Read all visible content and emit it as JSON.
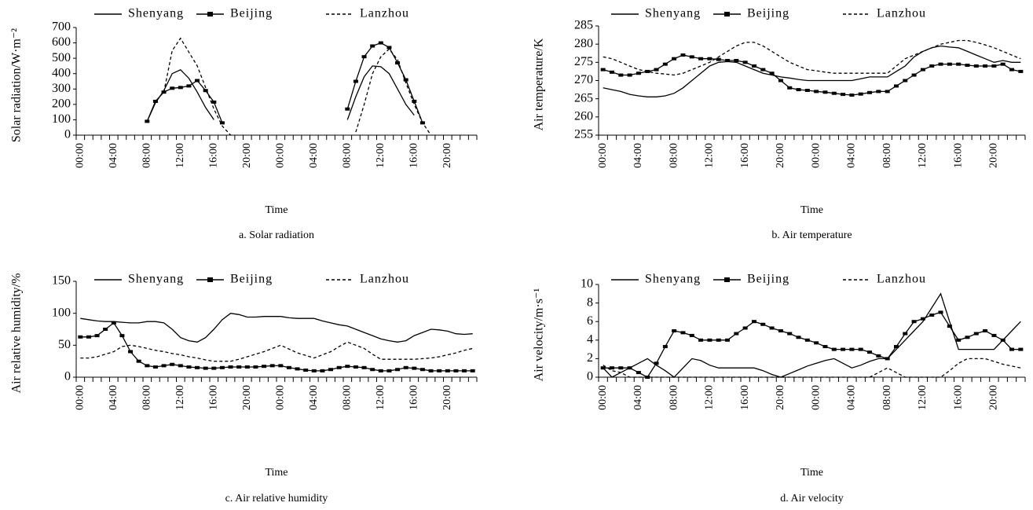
{
  "chart_data": [
    {
      "type": "line",
      "title": "a. Solar radiation",
      "xlabel": "Time",
      "ylabel": "Solar radiation/W·m⁻²",
      "legend": "top",
      "categories": [
        "00:00",
        null,
        null,
        null,
        "04:00",
        null,
        null,
        null,
        "08:00",
        null,
        null,
        null,
        "12:00",
        null,
        null,
        null,
        "16:00",
        null,
        null,
        null,
        "20:00",
        null,
        null,
        null,
        "00:00",
        null,
        null,
        null,
        "04:00",
        null,
        null,
        null,
        "08:00",
        null,
        null,
        null,
        "12:00",
        null,
        null,
        null,
        "16:00",
        null,
        null,
        null,
        "20:00",
        null,
        null,
        null
      ],
      "ylim": [
        0,
        700
      ],
      "yticks": [
        0,
        100,
        200,
        300,
        400,
        500,
        600,
        700
      ],
      "series": [
        {
          "name": "Shenyang",
          "color": "#000000",
          "style": "solid",
          "marker": "none",
          "values": [
            null,
            null,
            null,
            null,
            null,
            null,
            null,
            null,
            90,
            210,
            290,
            400,
            425,
            370,
            280,
            180,
            100,
            null,
            null,
            null,
            null,
            null,
            null,
            null,
            null,
            null,
            null,
            null,
            null,
            null,
            null,
            null,
            100,
            250,
            380,
            450,
            445,
            400,
            300,
            200,
            130,
            null,
            null,
            null,
            null,
            null,
            null,
            null
          ]
        },
        {
          "name": "Beijing",
          "color": "#000000",
          "style": "solid",
          "marker": "square",
          "values": [
            null,
            null,
            null,
            null,
            null,
            null,
            null,
            null,
            90,
            220,
            280,
            305,
            310,
            320,
            355,
            290,
            215,
            80,
            null,
            null,
            null,
            null,
            null,
            null,
            null,
            null,
            null,
            null,
            null,
            null,
            null,
            null,
            170,
            350,
            510,
            580,
            600,
            570,
            470,
            360,
            220,
            80,
            null,
            null,
            null,
            null,
            null,
            null
          ]
        },
        {
          "name": "Lanzhou",
          "color": "#000000",
          "style": "dashed",
          "marker": "none",
          "values": [
            null,
            null,
            null,
            null,
            null,
            null,
            null,
            null,
            null,
            null,
            280,
            550,
            630,
            540,
            450,
            310,
            170,
            60,
            0,
            null,
            null,
            null,
            null,
            null,
            null,
            null,
            null,
            null,
            null,
            null,
            null,
            null,
            null,
            20,
            200,
            400,
            510,
            560,
            490,
            340,
            200,
            80,
            0,
            null,
            null,
            null,
            null,
            null
          ]
        }
      ]
    },
    {
      "type": "line",
      "title": "b. Air temperature",
      "xlabel": "Time",
      "ylabel": "Air temperature/K",
      "legend": "top",
      "categories": [
        "00:00",
        null,
        null,
        null,
        "04:00",
        null,
        null,
        null,
        "08:00",
        null,
        null,
        null,
        "12:00",
        null,
        null,
        null,
        "16:00",
        null,
        null,
        null,
        "20:00",
        null,
        null,
        null,
        "00:00",
        null,
        null,
        null,
        "04:00",
        null,
        null,
        null,
        "08:00",
        null,
        null,
        null,
        "12:00",
        null,
        null,
        null,
        "16:00",
        null,
        null,
        null,
        "20:00",
        null,
        null,
        null
      ],
      "ylim": [
        255,
        285
      ],
      "yticks": [
        255,
        260,
        265,
        270,
        275,
        280,
        285
      ],
      "series": [
        {
          "name": "Shenyang",
          "color": "#000000",
          "style": "solid",
          "marker": "none",
          "values": [
            268,
            267.5,
            267,
            266.2,
            265.8,
            265.5,
            265.5,
            265.8,
            266.5,
            268,
            270,
            272,
            274,
            275,
            275.2,
            275,
            274,
            273,
            272,
            271.5,
            271,
            270.7,
            270.3,
            270,
            270,
            270,
            270,
            270,
            270,
            270.5,
            271,
            271,
            271,
            272.5,
            274,
            276.5,
            278,
            279,
            279.5,
            279.2,
            279,
            278,
            277,
            276,
            275,
            275.5,
            275,
            275
          ]
        },
        {
          "name": "Beijing",
          "color": "#000000",
          "style": "solid",
          "marker": "square",
          "values": [
            273,
            272.3,
            271.5,
            271.5,
            272,
            272.5,
            273,
            274.5,
            276,
            277,
            276.5,
            276,
            276,
            275.8,
            275.5,
            275.5,
            275,
            274,
            273,
            272,
            270,
            268,
            267.5,
            267.3,
            267,
            266.8,
            266.5,
            266.2,
            266,
            266.3,
            266.7,
            267,
            267,
            268.5,
            270,
            271.5,
            273,
            274,
            274.5,
            274.5,
            274.5,
            274.2,
            274,
            274,
            274,
            274.5,
            273,
            272.5
          ]
        },
        {
          "name": "Lanzhou",
          "color": "#000000",
          "style": "dashed",
          "marker": "none",
          "values": [
            276.5,
            276,
            275,
            274,
            273,
            272.5,
            272,
            271.8,
            271.5,
            272,
            273,
            274,
            275,
            276.5,
            278,
            279.5,
            280.5,
            280.5,
            279.5,
            278,
            276.5,
            275,
            274,
            273,
            272.7,
            272.3,
            272,
            272,
            272,
            272,
            272,
            272,
            272,
            274,
            276,
            277,
            278,
            279,
            280,
            280.5,
            281,
            281,
            280.5,
            279.8,
            279,
            278,
            277,
            276
          ]
        }
      ]
    },
    {
      "type": "line",
      "title": "c. Air relative humidity",
      "xlabel": "Time",
      "ylabel": "Air relative humidity/%",
      "legend": "top",
      "categories": [
        "00:00",
        null,
        null,
        null,
        "04:00",
        null,
        null,
        null,
        "08:00",
        null,
        null,
        null,
        "12:00",
        null,
        null,
        null,
        "16:00",
        null,
        null,
        null,
        "20:00",
        null,
        null,
        null,
        "00:00",
        null,
        null,
        null,
        "04:00",
        null,
        null,
        null,
        "08:00",
        null,
        null,
        null,
        "12:00",
        null,
        null,
        null,
        "16:00",
        null,
        null,
        null,
        "20:00",
        null,
        null,
        null
      ],
      "ylim": [
        0,
        150
      ],
      "yticks": [
        0,
        50,
        100,
        150
      ],
      "series": [
        {
          "name": "Shenyang",
          "color": "#000000",
          "style": "solid",
          "marker": "none",
          "values": [
            92,
            90,
            88,
            87,
            87,
            86,
            85,
            85,
            87,
            87,
            85,
            75,
            62,
            57,
            55,
            62,
            75,
            90,
            100,
            98,
            94,
            94,
            95,
            95,
            95,
            93,
            92,
            92,
            92,
            88,
            85,
            82,
            80,
            75,
            70,
            65,
            60,
            57,
            55,
            57,
            65,
            70,
            75,
            74,
            72,
            68,
            67,
            68
          ]
        },
        {
          "name": "Beijing",
          "color": "#000000",
          "style": "solid",
          "marker": "square",
          "values": [
            63,
            63,
            65,
            75,
            85,
            65,
            40,
            25,
            18,
            16,
            18,
            20,
            18,
            16,
            15,
            14,
            14,
            15,
            16,
            16,
            16,
            16,
            17,
            18,
            18,
            15,
            13,
            11,
            10,
            10,
            12,
            15,
            17,
            16,
            15,
            12,
            10,
            10,
            12,
            15,
            14,
            12,
            10,
            10,
            10,
            10,
            10,
            10
          ]
        },
        {
          "name": "Lanzhou",
          "color": "#000000",
          "style": "dashed",
          "marker": "none",
          "values": [
            30,
            30,
            32,
            36,
            40,
            48,
            50,
            48,
            45,
            42,
            40,
            37,
            35,
            32,
            30,
            27,
            25,
            25,
            25,
            28,
            32,
            36,
            40,
            45,
            50,
            44,
            38,
            34,
            30,
            35,
            40,
            48,
            55,
            50,
            45,
            36,
            28,
            28,
            28,
            28,
            28,
            29,
            30,
            32,
            35,
            38,
            42,
            45
          ]
        }
      ]
    },
    {
      "type": "line",
      "title": "d. Air velocity",
      "xlabel": "Time",
      "ylabel": "Air velocity/m·s⁻¹",
      "legend": "top",
      "categories": [
        "00:00",
        null,
        null,
        null,
        "04:00",
        null,
        null,
        null,
        "08:00",
        null,
        null,
        null,
        "12:00",
        null,
        null,
        null,
        "16:00",
        null,
        null,
        null,
        "20:00",
        null,
        null,
        null,
        "00:00",
        null,
        null,
        null,
        "04:00",
        null,
        null,
        null,
        "08:00",
        null,
        null,
        null,
        "12:00",
        null,
        null,
        null,
        "16:00",
        null,
        null,
        null,
        "20:00",
        null,
        null,
        null
      ],
      "ylim": [
        0,
        10
      ],
      "yticks": [
        0,
        2,
        4,
        6,
        8,
        10
      ],
      "series": [
        {
          "name": "Shenyang",
          "color": "#000000",
          "style": "solid",
          "marker": "none",
          "values": [
            1,
            0,
            0.5,
            1,
            1.5,
            2,
            1.3,
            0.7,
            0,
            1,
            2,
            1.8,
            1.3,
            1,
            1,
            1,
            1,
            1,
            0.7,
            0.3,
            0,
            0.4,
            0.8,
            1.2,
            1.5,
            1.8,
            2,
            1.5,
            1,
            1.3,
            1.7,
            2,
            2,
            3,
            4,
            5,
            6,
            7.5,
            9,
            6,
            3,
            3,
            3,
            3,
            3,
            4,
            5,
            6
          ]
        },
        {
          "name": "Beijing",
          "color": "#000000",
          "style": "solid",
          "marker": "square",
          "values": [
            1,
            1,
            1,
            1,
            0.5,
            0,
            1.5,
            3.3,
            5,
            4.8,
            4.5,
            4,
            4,
            4,
            4,
            4.7,
            5.3,
            6,
            5.7,
            5.3,
            5,
            4.7,
            4.3,
            4,
            3.7,
            3.3,
            3,
            3,
            3,
            3,
            2.7,
            2.3,
            2,
            3.3,
            4.7,
            6,
            6.3,
            6.7,
            7,
            5.5,
            4,
            4.3,
            4.7,
            5,
            4.5,
            4,
            3,
            3
          ]
        },
        {
          "name": "Lanzhou",
          "color": "#000000",
          "style": "dashed",
          "marker": "none",
          "values": [
            1.3,
            0.7,
            0.5,
            0,
            0,
            0,
            0,
            0,
            0,
            0,
            0,
            0,
            0,
            0,
            0,
            0,
            0,
            0,
            0,
            0,
            0,
            0,
            0,
            0,
            0,
            0,
            0,
            0,
            0,
            0,
            0,
            0.5,
            1,
            0.5,
            0,
            0,
            0,
            0,
            0,
            0.7,
            1.5,
            2,
            2,
            2,
            1.7,
            1.4,
            1.2,
            1
          ]
        }
      ]
    }
  ]
}
